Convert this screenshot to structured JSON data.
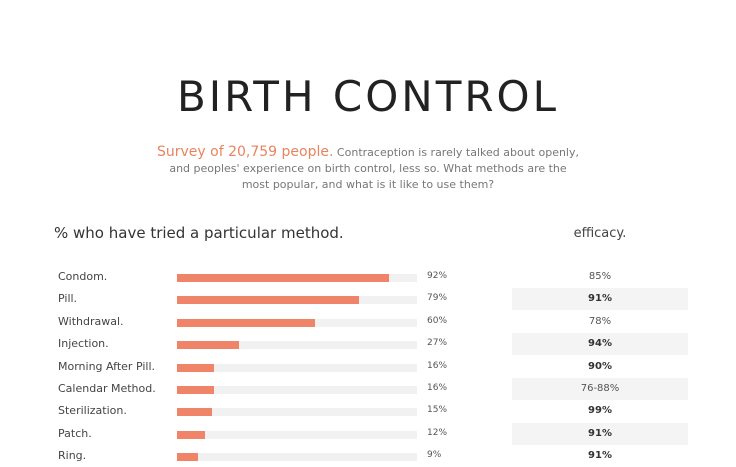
{
  "title": "BIRTH CONTROL",
  "subtitle": {
    "highlight": "Survey of 20,759 people.",
    "line1": " Contraception is rarely talked about openly,",
    "line2": "and peoples' experience on birth control, less so. What methods are the",
    "line3": "most popular, and what is it like to use them?"
  },
  "left_header": "% who have tried a particular method.",
  "right_header": "efficacy.",
  "colors": {
    "bar": "#ef8469",
    "track": "#f1f1f1",
    "highlight": "#e8845e"
  },
  "chart_data": {
    "type": "bar",
    "orientation": "horizontal",
    "categories": [
      "Condom.",
      "Pill.",
      "Withdrawal.",
      "Injection.",
      "Morning After Pill.",
      "Calendar Method.",
      "Sterilization.",
      "Patch.",
      "Ring."
    ],
    "values": [
      92,
      79,
      60,
      27,
      16,
      16,
      15,
      12,
      9
    ],
    "value_labels": [
      "92%",
      "79%",
      "60%",
      "27%",
      "16%",
      "16%",
      "15%",
      "12%",
      "9%"
    ],
    "efficacy": [
      "85%",
      "91%",
      "78%",
      "94%",
      "90%",
      "76-88%",
      "99%",
      "91%",
      "91%"
    ],
    "xlim": [
      0,
      100
    ]
  }
}
